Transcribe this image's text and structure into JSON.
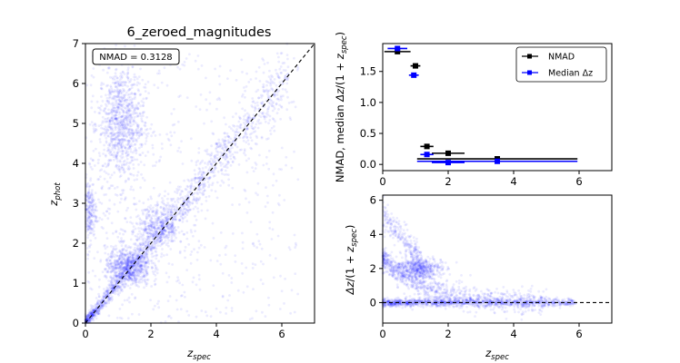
{
  "chart_data": [
    {
      "type": "scatter",
      "title": "6_zeroed_magnitudes",
      "annotation": "NMAD = 0.3128",
      "xlabel": "z_spec",
      "ylabel": "z_phot",
      "xlim": [
        0,
        7
      ],
      "ylim": [
        0,
        7
      ],
      "xticks": [
        0,
        2,
        4,
        6
      ],
      "yticks": [
        0,
        1,
        2,
        3,
        4,
        5,
        6,
        7
      ],
      "reference_line": {
        "style": "dashed",
        "color": "#000000",
        "from": [
          0,
          0
        ],
        "to": [
          7,
          7
        ]
      },
      "point_color": "#0000ff",
      "density_clusters": [
        {
          "x": 1.1,
          "y": 5.0,
          "sx": 0.35,
          "sy": 0.75,
          "n": 900
        },
        {
          "x": 0.1,
          "y": 2.8,
          "sx": 0.12,
          "sy": 0.4,
          "n": 250
        },
        {
          "x": 1.3,
          "y": 1.4,
          "sx": 0.35,
          "sy": 0.25,
          "n": 700
        },
        {
          "x": 2.2,
          "y": 2.4,
          "sx": 0.4,
          "sy": 0.3,
          "n": 450
        }
      ]
    },
    {
      "type": "errorbar",
      "xlabel": "z_spec",
      "ylabel": "NMAD, median Δz/(1 + z_spec)",
      "xlim": [
        0,
        7
      ],
      "ylim": [
        -0.1,
        1.95
      ],
      "xticks": [
        0,
        2,
        4,
        6
      ],
      "yticks": [
        0.0,
        0.5,
        1.0,
        1.5
      ],
      "legend_position": "top-right",
      "series": [
        {
          "name": "NMAD",
          "color": "#000000",
          "points": [
            {
              "x": 0.45,
              "xerr": 0.4,
              "y": 1.82
            },
            {
              "x": 1.0,
              "xerr": 0.15,
              "y": 1.59
            },
            {
              "x": 1.35,
              "xerr": 0.2,
              "y": 0.29
            },
            {
              "x": 2.0,
              "xerr": 0.5,
              "y": 0.18
            },
            {
              "x": 3.5,
              "xerr": 2.45,
              "y": 0.09
            }
          ]
        },
        {
          "name": "Median Δz",
          "color": "#0000ff",
          "points": [
            {
              "x": 0.45,
              "xerr": 0.3,
              "y": 1.87
            },
            {
              "x": 0.95,
              "xerr": 0.15,
              "y": 1.44
            },
            {
              "x": 1.35,
              "xerr": 0.2,
              "y": 0.16
            },
            {
              "x": 2.0,
              "xerr": 0.5,
              "y": 0.03
            },
            {
              "x": 3.5,
              "xerr": 2.45,
              "y": 0.05
            }
          ]
        }
      ]
    },
    {
      "type": "scatter",
      "xlabel": "z_spec",
      "ylabel": "Δz/(1 + z_spec)",
      "xlim": [
        0,
        7
      ],
      "ylim": [
        -1.2,
        6.3
      ],
      "xticks": [
        0,
        2,
        4,
        6
      ],
      "yticks": [
        0,
        2,
        4,
        6
      ],
      "reference_line": {
        "style": "dashed",
        "color": "#000000",
        "y": 0
      },
      "point_color": "#0000ff"
    }
  ]
}
